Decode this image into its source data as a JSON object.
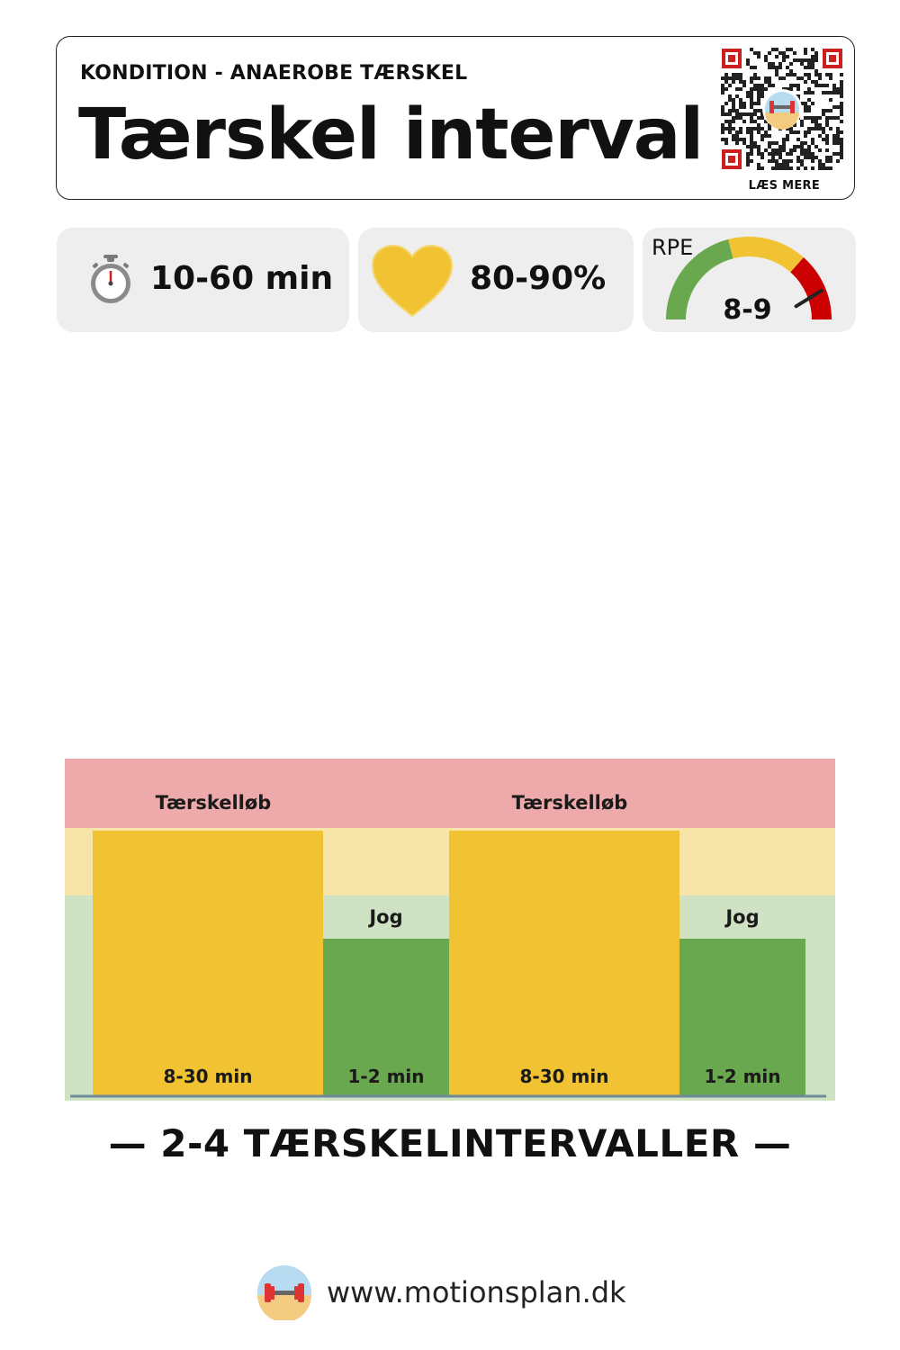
{
  "header": {
    "category": "KONDITION - ANAEROBE TÆRSKEL",
    "title": "Tærskel interval",
    "qr_caption": "LÆS MERE"
  },
  "stats": {
    "duration": {
      "icon": "stopwatch-icon",
      "value": "10-60 min"
    },
    "heart_rate": {
      "icon": "heart-icon",
      "value": "80-90%"
    },
    "rpe": {
      "label": "RPE",
      "value": "8-9",
      "level": 8.5,
      "scale_max": 10,
      "icon": "gauge-icon"
    }
  },
  "colors": {
    "zone_high": "#eeaaaa",
    "zone_mid": "#f7e4a8",
    "zone_low": "#cfe3c4",
    "work_block": "#f1c232",
    "rest_block": "#6aa84f",
    "gauge_green": "#6aa84f",
    "gauge_yellow": "#f1c232",
    "gauge_red": "#cc0000"
  },
  "chart_data": {
    "type": "bar",
    "categories": [
      "Tærskelløb",
      "Jog",
      "Tærskelløb",
      "Jog"
    ],
    "durations": [
      "8-30 min",
      "1-2 min",
      "8-30 min",
      "1-2 min"
    ],
    "intensity_zone": [
      "mid",
      "low",
      "mid",
      "low"
    ]
  },
  "caption": "— 2-4 TÆRSKELINTERVALLER —",
  "footer": {
    "url": "www.motionsplan.dk",
    "icon": "motionsplan-logo-icon"
  }
}
